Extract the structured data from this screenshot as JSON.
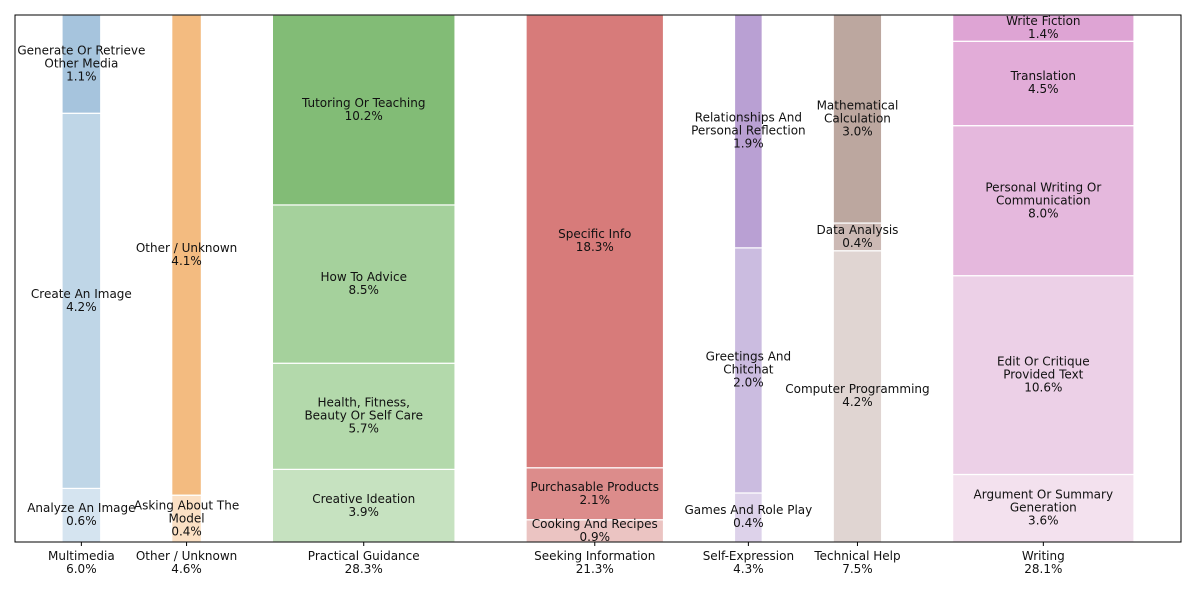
{
  "chart_data": {
    "type": "marimekko",
    "columns": [
      {
        "name": "Multimedia",
        "total": 6.0,
        "total_label": "6.0%",
        "segments": [
          {
            "name": "Analyze An Image",
            "value": 0.6,
            "value_label": "0.6%",
            "color": "#d5e4f0"
          },
          {
            "name": "Create An Image",
            "value": 4.2,
            "value_label": "4.2%",
            "color": "#bfd6e7"
          },
          {
            "name": "Generate Or Retrieve\nOther Media",
            "value": 1.1,
            "value_label": "1.1%",
            "color": "#a6c4dd"
          }
        ]
      },
      {
        "name": "Other / Unknown",
        "total": 4.6,
        "total_label": "4.6%",
        "segments": [
          {
            "name": "Asking About The\nModel",
            "value": 0.4,
            "value_label": "0.4%",
            "color": "#fbe0c4"
          },
          {
            "name": "Other / Unknown",
            "value": 4.1,
            "value_label": "4.1%",
            "color": "#f3bb80"
          }
        ]
      },
      {
        "name": "Practical Guidance",
        "total": 28.3,
        "total_label": "28.3%",
        "segments": [
          {
            "name": "Creative Ideation",
            "value": 3.9,
            "value_label": "3.9%",
            "color": "#c6e2c0"
          },
          {
            "name": "Health, Fitness,\nBeauty Or Self Care",
            "value": 5.7,
            "value_label": "5.7%",
            "color": "#b3d9ab"
          },
          {
            "name": "How To Advice",
            "value": 8.5,
            "value_label": "8.5%",
            "color": "#a5d19c"
          },
          {
            "name": "Tutoring Or Teaching",
            "value": 10.2,
            "value_label": "10.2%",
            "color": "#82bc76"
          }
        ]
      },
      {
        "name": "Seeking Information",
        "total": 21.3,
        "total_label": "21.3%",
        "segments": [
          {
            "name": "Cooking And Recipes",
            "value": 0.9,
            "value_label": "0.9%",
            "color": "#ebc4c2"
          },
          {
            "name": "Purchasable Products",
            "value": 2.1,
            "value_label": "2.1%",
            "color": "#dc8c8b"
          },
          {
            "name": "Specific Info",
            "value": 18.3,
            "value_label": "18.3%",
            "color": "#d77b7a"
          }
        ]
      },
      {
        "name": "Self-Expression",
        "total": 4.3,
        "total_label": "4.3%",
        "segments": [
          {
            "name": "Games And Role Play",
            "value": 0.4,
            "value_label": "0.4%",
            "color": "#ddd2ea"
          },
          {
            "name": "Greetings And\nChitchat",
            "value": 2.0,
            "value_label": "2.0%",
            "color": "#cbbce0"
          },
          {
            "name": "Relationships And\nPersonal Reflection",
            "value": 1.9,
            "value_label": "1.9%",
            "color": "#b9a0d3"
          }
        ]
      },
      {
        "name": "Technical Help",
        "total": 7.5,
        "total_label": "7.5%",
        "segments": [
          {
            "name": "Computer Programming",
            "value": 4.2,
            "value_label": "4.2%",
            "color": "#e0d5d2"
          },
          {
            "name": "Data Analysis",
            "value": 0.4,
            "value_label": "0.4%",
            "color": "#ccb9b4"
          },
          {
            "name": "Mathematical\nCalculation",
            "value": 3.0,
            "value_label": "3.0%",
            "color": "#bca79f"
          }
        ]
      },
      {
        "name": "Writing",
        "total": 28.1,
        "total_label": "28.1%",
        "segments": [
          {
            "name": "Argument Or Summary\nGeneration",
            "value": 3.6,
            "value_label": "3.6%",
            "color": "#f3e1ee"
          },
          {
            "name": "Edit Or Critique\nProvided Text",
            "value": 10.6,
            "value_label": "10.6%",
            "color": "#ecd0e7"
          },
          {
            "name": "Personal Writing Or\nCommunication",
            "value": 8.0,
            "value_label": "8.0%",
            "color": "#e5b8dd"
          },
          {
            "name": "Translation",
            "value": 4.5,
            "value_label": "4.5%",
            "color": "#e2acd8"
          },
          {
            "name": "Write Fiction",
            "value": 1.4,
            "value_label": "1.4%",
            "color": "#dea4d4"
          }
        ]
      }
    ]
  }
}
